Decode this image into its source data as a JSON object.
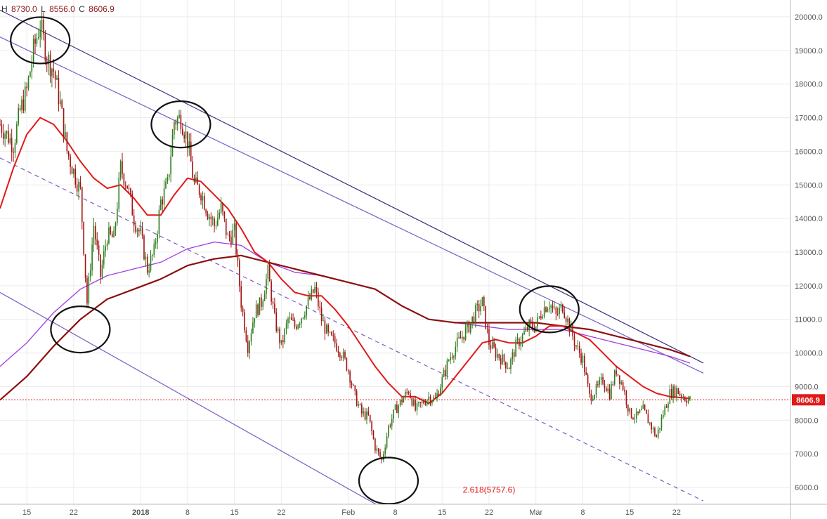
{
  "ohlc": {
    "h_label": "H",
    "h": "8730.0",
    "l_label": "L",
    "l": "8556.0",
    "c_label": "C",
    "c": "8606.9"
  },
  "colors": {
    "up": "#2f7d1e",
    "down": "#a11212",
    "ma_fast": "#e01919",
    "ma_mid": "#a23ce0",
    "ma_slow": "#8b1010",
    "channel": "#7a5cc6",
    "channel_outer": "#3a2f7a",
    "last_price": "#e01919",
    "grid": "#ececec"
  },
  "chart_data": {
    "type": "candlestick",
    "title": "",
    "ylim": [
      5500,
      20500
    ],
    "y_ticks": [
      "6000.0",
      "7000.0",
      "8000.0",
      "9000.0",
      "10000.0",
      "11000.0",
      "12000.0",
      "13000.0",
      "14000.0",
      "15000.0",
      "16000.0",
      "17000.0",
      "18000.0",
      "19000.0",
      "20000.0"
    ],
    "x_range_days": [
      -21,
      97
    ],
    "x_ticks": [
      {
        "label": "15",
        "day": -17
      },
      {
        "label": "22",
        "day": -10
      },
      {
        "label": "2018",
        "day": 0
      },
      {
        "label": "8",
        "day": 7
      },
      {
        "label": "15",
        "day": 14
      },
      {
        "label": "22",
        "day": 21
      },
      {
        "label": "Feb",
        "day": 31
      },
      {
        "label": "8",
        "day": 38
      },
      {
        "label": "15",
        "day": 45
      },
      {
        "label": "22",
        "day": 52
      },
      {
        "label": "Mar",
        "day": 59
      },
      {
        "label": "8",
        "day": 66
      },
      {
        "label": "15",
        "day": 73
      },
      {
        "label": "22",
        "day": 80
      }
    ],
    "last_price": {
      "value": 8606.9,
      "label": "8606.9"
    },
    "fib_annotation": {
      "label": "2.618(5757.6)",
      "value": 5757.6
    },
    "price_path": [
      [
        -21,
        16800
      ],
      [
        -19,
        16200
      ],
      [
        -18,
        17200
      ],
      [
        -17,
        17800
      ],
      [
        -16,
        19000
      ],
      [
        -15,
        19800
      ],
      [
        -14,
        18800
      ],
      [
        -13,
        18400
      ],
      [
        -12,
        17400
      ],
      [
        -11,
        16000
      ],
      [
        -10,
        15400
      ],
      [
        -9,
        14800
      ],
      [
        -8,
        11500
      ],
      [
        -7,
        13800
      ],
      [
        -6,
        12300
      ],
      [
        -5,
        13500
      ],
      [
        -4,
        13400
      ],
      [
        -3,
        15500
      ],
      [
        -2,
        15000
      ],
      [
        -1,
        14000
      ],
      [
        0,
        13500
      ],
      [
        1,
        12500
      ],
      [
        2,
        13000
      ],
      [
        3,
        14500
      ],
      [
        4,
        15000
      ],
      [
        5,
        16900
      ],
      [
        6,
        17000
      ],
      [
        7,
        16300
      ],
      [
        8,
        15000
      ],
      [
        9,
        14800
      ],
      [
        10,
        14200
      ],
      [
        11,
        13800
      ],
      [
        12,
        14300
      ],
      [
        13,
        13400
      ],
      [
        14,
        13600
      ],
      [
        15,
        11500
      ],
      [
        16,
        10200
      ],
      [
        17,
        11200
      ],
      [
        18,
        11500
      ],
      [
        19,
        12400
      ],
      [
        20,
        11000
      ],
      [
        21,
        10200
      ],
      [
        22,
        11000
      ],
      [
        23,
        10800
      ],
      [
        24,
        11100
      ],
      [
        25,
        11500
      ],
      [
        26,
        11900
      ],
      [
        27,
        11000
      ],
      [
        28,
        10500
      ],
      [
        29,
        10300
      ],
      [
        30,
        10000
      ],
      [
        31,
        9500
      ],
      [
        32,
        8700
      ],
      [
        33,
        8200
      ],
      [
        34,
        8100
      ],
      [
        35,
        7200
      ],
      [
        36,
        6800
      ],
      [
        37,
        7800
      ],
      [
        38,
        8300
      ],
      [
        39,
        8600
      ],
      [
        40,
        8900
      ],
      [
        41,
        8300
      ],
      [
        42,
        8500
      ],
      [
        43,
        8700
      ],
      [
        44,
        8600
      ],
      [
        45,
        9200
      ],
      [
        46,
        9800
      ],
      [
        47,
        10200
      ],
      [
        48,
        10500
      ],
      [
        49,
        10800
      ],
      [
        50,
        11200
      ],
      [
        51,
        11500
      ],
      [
        52,
        10300
      ],
      [
        53,
        10000
      ],
      [
        54,
        9800
      ],
      [
        55,
        9600
      ],
      [
        56,
        10200
      ],
      [
        57,
        10500
      ],
      [
        58,
        10800
      ],
      [
        59,
        10800
      ],
      [
        60,
        11300
      ],
      [
        61,
        11500
      ],
      [
        62,
        11100
      ],
      [
        63,
        11400
      ],
      [
        64,
        10800
      ],
      [
        65,
        10200
      ],
      [
        66,
        9800
      ],
      [
        67,
        8700
      ],
      [
        68,
        8900
      ],
      [
        69,
        9200
      ],
      [
        70,
        8800
      ],
      [
        71,
        9500
      ],
      [
        72,
        9000
      ],
      [
        73,
        8200
      ],
      [
        74,
        8100
      ],
      [
        75,
        8300
      ],
      [
        76,
        7900
      ],
      [
        77,
        7500
      ],
      [
        78,
        8200
      ],
      [
        79,
        8800
      ],
      [
        80,
        8900
      ],
      [
        81,
        8700
      ],
      [
        82,
        8600
      ]
    ],
    "ma_fast": [
      [
        -21,
        14300
      ],
      [
        -19,
        15500
      ],
      [
        -17,
        16500
      ],
      [
        -15,
        17000
      ],
      [
        -13,
        16800
      ],
      [
        -11,
        16300
      ],
      [
        -9,
        15700
      ],
      [
        -7,
        15200
      ],
      [
        -5,
        14900
      ],
      [
        -3,
        15000
      ],
      [
        -1,
        14600
      ],
      [
        1,
        14100
      ],
      [
        3,
        14100
      ],
      [
        5,
        14700
      ],
      [
        7,
        15200
      ],
      [
        9,
        15100
      ],
      [
        11,
        14700
      ],
      [
        13,
        14300
      ],
      [
        15,
        13700
      ],
      [
        17,
        13000
      ],
      [
        19,
        12700
      ],
      [
        21,
        12200
      ],
      [
        23,
        11800
      ],
      [
        25,
        11700
      ],
      [
        27,
        11700
      ],
      [
        29,
        11300
      ],
      [
        31,
        10800
      ],
      [
        33,
        10200
      ],
      [
        35,
        9600
      ],
      [
        37,
        9100
      ],
      [
        39,
        8700
      ],
      [
        41,
        8700
      ],
      [
        43,
        8500
      ],
      [
        45,
        8800
      ],
      [
        47,
        9300
      ],
      [
        49,
        9800
      ],
      [
        51,
        10300
      ],
      [
        53,
        10400
      ],
      [
        55,
        10300
      ],
      [
        57,
        10300
      ],
      [
        59,
        10500
      ],
      [
        61,
        10800
      ],
      [
        63,
        10800
      ],
      [
        65,
        10600
      ],
      [
        67,
        10400
      ],
      [
        69,
        10000
      ],
      [
        71,
        9600
      ],
      [
        73,
        9300
      ],
      [
        75,
        9000
      ],
      [
        77,
        8800
      ],
      [
        79,
        8700
      ],
      [
        82,
        8650
      ]
    ],
    "ma_mid": [
      [
        -21,
        9600
      ],
      [
        -17,
        10300
      ],
      [
        -13,
        11200
      ],
      [
        -9,
        11900
      ],
      [
        -5,
        12300
      ],
      [
        -1,
        12500
      ],
      [
        3,
        12700
      ],
      [
        7,
        13100
      ],
      [
        11,
        13300
      ],
      [
        15,
        13200
      ],
      [
        19,
        12700
      ],
      [
        23,
        12400
      ],
      [
        27,
        12300
      ],
      [
        31,
        12100
      ],
      [
        35,
        11900
      ],
      [
        39,
        11400
      ],
      [
        43,
        11000
      ],
      [
        47,
        10900
      ],
      [
        51,
        10800
      ],
      [
        55,
        10700
      ],
      [
        59,
        10700
      ],
      [
        63,
        10700
      ],
      [
        67,
        10500
      ],
      [
        71,
        10300
      ],
      [
        75,
        10100
      ],
      [
        79,
        9900
      ],
      [
        82,
        9700
      ]
    ],
    "ma_slow": [
      [
        -21,
        8600
      ],
      [
        -17,
        9300
      ],
      [
        -13,
        10200
      ],
      [
        -9,
        11000
      ],
      [
        -5,
        11600
      ],
      [
        -1,
        11900
      ],
      [
        3,
        12200
      ],
      [
        7,
        12600
      ],
      [
        11,
        12800
      ],
      [
        15,
        12900
      ],
      [
        19,
        12700
      ],
      [
        23,
        12500
      ],
      [
        27,
        12300
      ],
      [
        31,
        12100
      ],
      [
        35,
        11900
      ],
      [
        39,
        11400
      ],
      [
        43,
        11000
      ],
      [
        47,
        10900
      ],
      [
        51,
        10900
      ],
      [
        55,
        10900
      ],
      [
        59,
        10900
      ],
      [
        63,
        10800
      ],
      [
        67,
        10700
      ],
      [
        71,
        10500
      ],
      [
        75,
        10300
      ],
      [
        79,
        10100
      ],
      [
        82,
        9900
      ]
    ],
    "trendlines": [
      {
        "kind": "outer_top",
        "from": [
          -21,
          20200
        ],
        "to": [
          84,
          9700
        ]
      },
      {
        "kind": "channel_top",
        "from": [
          -21,
          19400
        ],
        "to": [
          84,
          9400
        ]
      },
      {
        "kind": "dashed_mid",
        "from": [
          -21,
          15800
        ],
        "to": [
          84,
          5600
        ]
      },
      {
        "kind": "channel_bottom",
        "from": [
          -21,
          11800
        ],
        "to": [
          36,
          5400
        ]
      }
    ],
    "circles": [
      {
        "day": -15,
        "value": 19300
      },
      {
        "day": -9,
        "value": 10700
      },
      {
        "day": 6,
        "value": 16800
      },
      {
        "day": 37,
        "value": 6200
      },
      {
        "day": 61,
        "value": 11300
      }
    ]
  }
}
